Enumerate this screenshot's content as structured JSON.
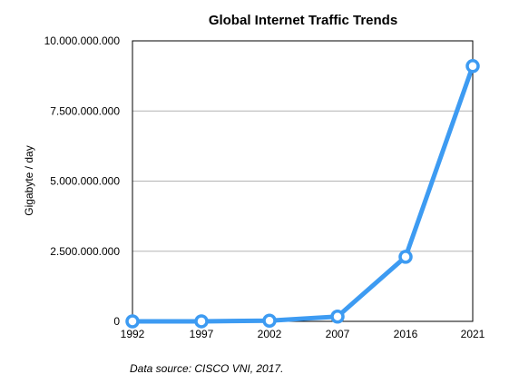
{
  "chart_data": {
    "type": "line",
    "title": "Global Internet Traffic Trends",
    "xlabel": "",
    "ylabel": "Gigabyte / day",
    "categories": [
      "1992",
      "1997",
      "2002",
      "2007",
      "2016",
      "2021"
    ],
    "series": [
      {
        "values": [
          0,
          2000000,
          25000000,
          170000000,
          2300000000,
          9100000000
        ],
        "color": "#3d9bf2"
      }
    ],
    "ylim": [
      0,
      10000000000
    ],
    "yticks": [
      0,
      2500000000,
      5000000000,
      7500000000,
      10000000000
    ],
    "ytick_labels": [
      "0",
      "2.500.000.000",
      "5.000.000.000",
      "7.500.000.000",
      "10.000.000.000"
    ],
    "grid": true,
    "legend": "none",
    "source_note": "Data source: CISCO VNI, 2017."
  }
}
